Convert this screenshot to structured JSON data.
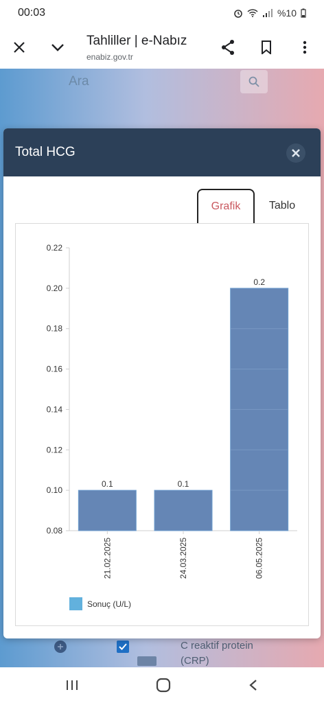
{
  "status_bar": {
    "time": "00:03",
    "battery": "%10"
  },
  "browser": {
    "title": "Tahliller | e-Nabız",
    "url": "enabiz.gov.tr"
  },
  "background": {
    "search_placeholder": "Ara",
    "row_label_1": "C reaktif protein",
    "row_label_2": "(CRP)"
  },
  "modal": {
    "title": "Total HCG",
    "tabs": [
      {
        "label": "Grafik",
        "active": true
      },
      {
        "label": "Tablo",
        "active": false
      }
    ]
  },
  "chart_data": {
    "type": "bar",
    "categories": [
      "21.02.2025",
      "24.03.2025",
      "06.05.2025"
    ],
    "series": [
      {
        "name": "Sonuç (U/L)",
        "values": [
          0.1,
          0.1,
          0.2
        ],
        "data_labels": [
          "0.1",
          "0.1",
          "0.2"
        ]
      }
    ],
    "ylim": [
      0.08,
      0.22
    ],
    "yticks": [
      "0.08",
      "0.10",
      "0.12",
      "0.14",
      "0.16",
      "0.18",
      "0.20",
      "0.22"
    ],
    "colors": {
      "bar": "#6586b5",
      "bar_stroke": "#6f9fcf",
      "legend_swatch": "#62b1dd"
    },
    "legend_position": "bottom-left",
    "grid": false
  }
}
